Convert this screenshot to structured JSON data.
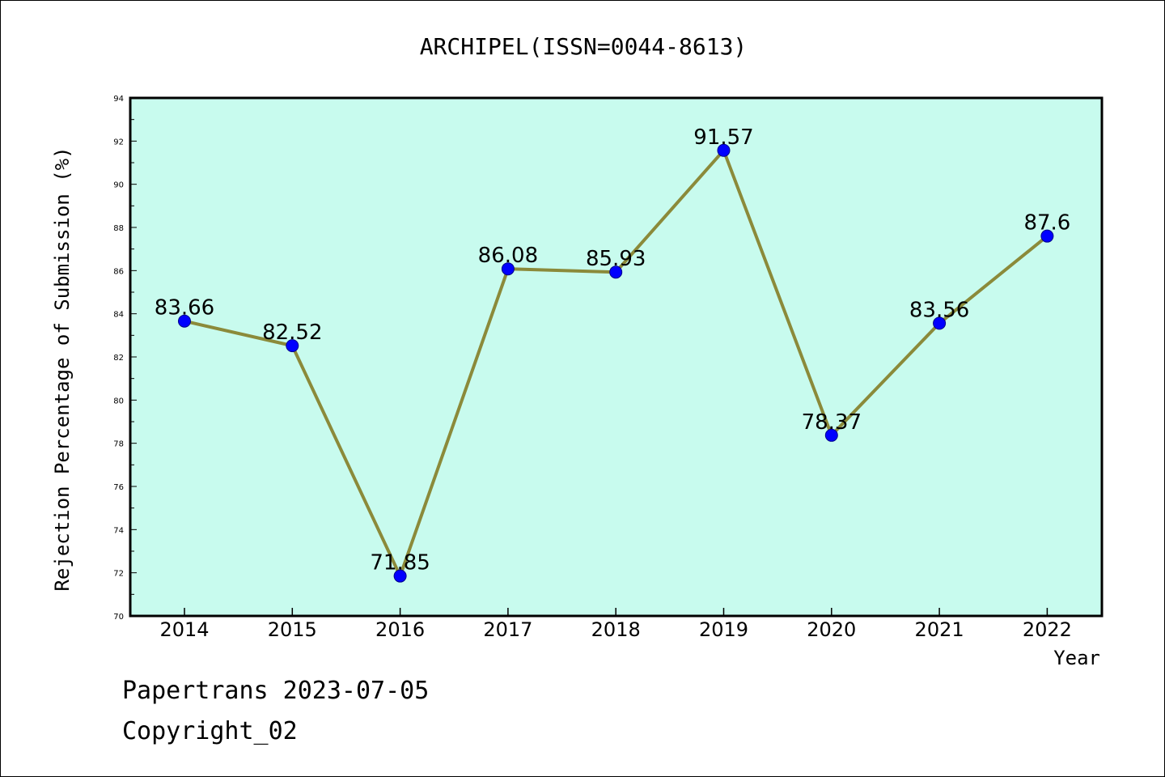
{
  "chart_data": {
    "type": "line",
    "title": "ARCHIPEL(ISSN=0044-8613)",
    "xlabel": "Year",
    "ylabel": "Rejection Percentage of Submission (%)",
    "categories": [
      "2014",
      "2015",
      "2016",
      "2017",
      "2018",
      "2019",
      "2020",
      "2021",
      "2022"
    ],
    "values": [
      83.66,
      82.52,
      71.85,
      86.08,
      85.93,
      91.57,
      78.37,
      83.56,
      87.6
    ],
    "data_labels": [
      "83.66",
      "82.52",
      "71.85",
      "86.08",
      "85.93",
      "91.57",
      "78.37",
      "83.56",
      "87.6"
    ],
    "ylim": [
      70,
      94
    ],
    "yticks": [
      "70",
      "72",
      "74",
      "76",
      "78",
      "80",
      "82",
      "84",
      "86",
      "88",
      "90",
      "92",
      "94"
    ],
    "grid": false,
    "legend": "none",
    "colors": {
      "plot_background": "#c8fbee",
      "line": "#8b8a3a",
      "marker": "#0000ff"
    }
  },
  "footer": {
    "line1": "Papertrans 2023-07-05",
    "line2": "Copyright_02"
  }
}
